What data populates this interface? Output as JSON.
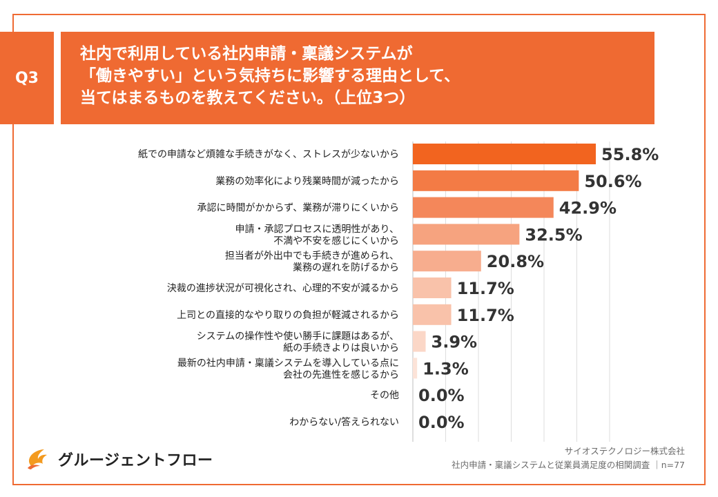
{
  "question": {
    "badge": "Q3",
    "title_lines": [
      "社内で利用している社内申請・稟議システムが",
      "「働きやすい」という気持ちに影響する理由として、",
      "当てはまるものを教えてください。（上位3つ）"
    ]
  },
  "footer": {
    "company": "サイオステクノロジー株式会社",
    "survey": "社内申請・稟議システムと従業員満足度の相関調査 ｜n=77"
  },
  "logo": {
    "text": "グルージェントフロー",
    "icon": "flame-logo-icon"
  },
  "colors": {
    "accent": "#ef6a32",
    "bar_scale": [
      "#f2641f",
      "#f37b45",
      "#f4875a",
      "#f6a37f",
      "#f7ad8e",
      "#f9c2aa",
      "#f9c2aa",
      "#fbd7c7",
      "#fce3d8",
      "#fde9e0",
      "#fde9e0"
    ]
  },
  "chart_data": {
    "type": "bar",
    "orientation": "horizontal",
    "grid": true,
    "categories": [
      "紙での申請など煩雑な手続きがなく、ストレスが少ないから",
      "業務の効率化により残業時間が減ったから",
      "承認に時間がかからず、業務が滞りにくいから",
      "申請・承認プロセスに透明性があり、\n不満や不安を感じにくいから",
      "担当者が外出中でも手続きが進められ、\n業務の遅れを防げるから",
      "決裁の進捗状況が可視化され、心理的不安が減るから",
      "上司との直接的なやり取りの負担が軽減されるから",
      "システムの操作性や使い勝手に課題はあるが、\n紙の手続きよりは良いから",
      "最新の社内申請・稟議システムを導入している点に\n会社の先進性を感じるから",
      "その他",
      "わからない/答えられない"
    ],
    "values": [
      55.8,
      50.6,
      42.9,
      32.5,
      20.8,
      11.7,
      11.7,
      3.9,
      1.3,
      0.0,
      0.0
    ],
    "value_labels": [
      "55.8%",
      "50.6%",
      "42.9%",
      "32.5%",
      "20.8%",
      "11.7%",
      "11.7%",
      "3.9%",
      "1.3%",
      "0.0%",
      "0.0%"
    ],
    "xlim": [
      0,
      60
    ]
  }
}
